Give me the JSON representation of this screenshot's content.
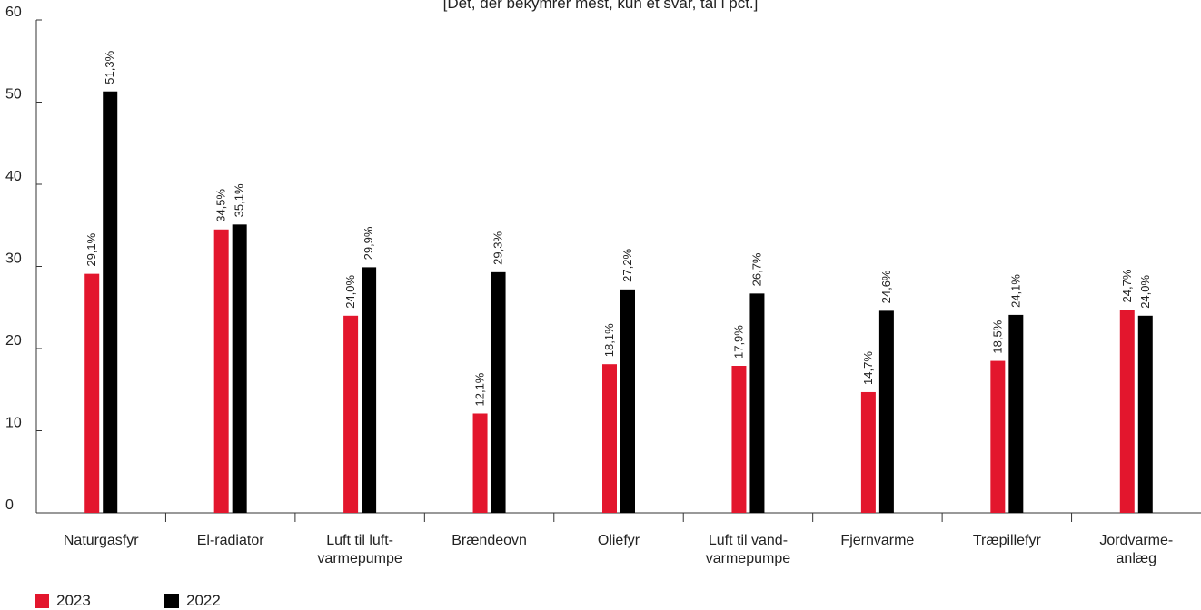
{
  "chart_data": {
    "type": "bar",
    "subtitle": "[Det, der bekymrer mest, kun ét svar, tal i pct.]",
    "categories": [
      [
        "Naturgasfyr"
      ],
      [
        "El-radiator"
      ],
      [
        "Luft til luft-",
        "varmepumpe"
      ],
      [
        "Brændeovn"
      ],
      [
        "Oliefyr"
      ],
      [
        "Luft til vand-",
        "varmepumpe"
      ],
      [
        "Fjernvarme"
      ],
      [
        "Træpillefyr"
      ],
      [
        "Jordvarme-",
        "anlæg"
      ]
    ],
    "series": [
      {
        "name": "2023",
        "color": "#e3162d",
        "values": [
          29.1,
          34.5,
          24.0,
          12.1,
          18.1,
          17.9,
          14.7,
          18.5,
          24.7
        ],
        "labels": [
          "29,1%",
          "34,5%",
          "24,0%",
          "12,1%",
          "18,1%",
          "17,9%",
          "14,7%",
          "18,5%",
          "24,7%"
        ]
      },
      {
        "name": "2022",
        "color": "#000000",
        "values": [
          51.3,
          35.1,
          29.9,
          29.3,
          27.2,
          26.7,
          24.6,
          24.1,
          24.0
        ],
        "labels": [
          "51,3%",
          "35,1%",
          "29,9%",
          "29,3%",
          "27,2%",
          "26,7%",
          "24,6%",
          "24,1%",
          "24,0%"
        ]
      }
    ],
    "yticks": [
      "0",
      "10",
      "20",
      "30",
      "40",
      "50",
      "60"
    ],
    "ylim": [
      0,
      60
    ],
    "grid": false,
    "legend": "bottom-left"
  }
}
